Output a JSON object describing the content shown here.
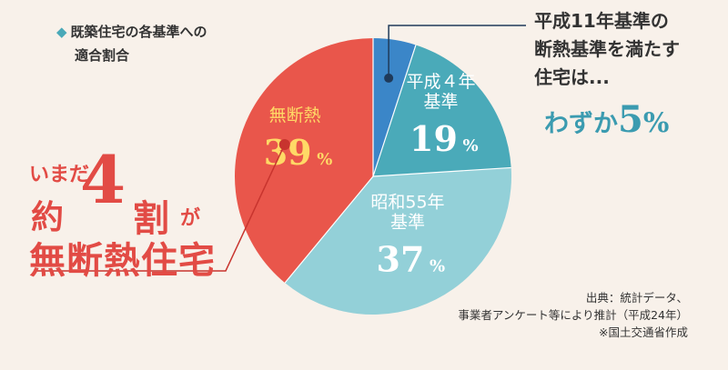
{
  "heading": {
    "line1": "既築住宅の各基準への",
    "line2": "適合割合"
  },
  "callout": {
    "prefix": "いまだ",
    "yaku": "約",
    "number": "4",
    "wari": "割",
    "ga": "が",
    "line3": "無断熱住宅"
  },
  "note": {
    "lines": [
      "平成11年基準の",
      "断熱基準を満たす",
      "住宅は..."
    ],
    "highlight_prefix": "わずか",
    "highlight_value": "5",
    "highlight_unit": "%"
  },
  "source": {
    "lines": [
      "出典：統計データ、",
      "事業者アンケート等により推計（平成24年）",
      "※国土交通省作成"
    ]
  },
  "colors": {
    "bg": "#f8f1ea",
    "red": "#e9564b",
    "teal": "#4aaab9",
    "lightTeal": "#93d0d8",
    "blue": "#3b86c8",
    "yellow": "#ffd966"
  },
  "chart_data": {
    "type": "pie",
    "title": "既築住宅の各基準への適合割合",
    "slices": [
      {
        "label": "平成11年基準",
        "value": 5,
        "label_lines": [],
        "color": "#3b86c8"
      },
      {
        "label": "平成４年基準",
        "value": 19,
        "label_lines": [
          "平成４年",
          "基準"
        ],
        "color": "#4aaab9"
      },
      {
        "label": "昭和55年基準",
        "value": 37,
        "label_lines": [
          "昭和55年",
          "基準"
        ],
        "color": "#93d0d8"
      },
      {
        "label": "無断熱",
        "value": 39,
        "label_lines": [
          "無断熱"
        ],
        "color": "#e9564b"
      }
    ],
    "unit": "%"
  }
}
